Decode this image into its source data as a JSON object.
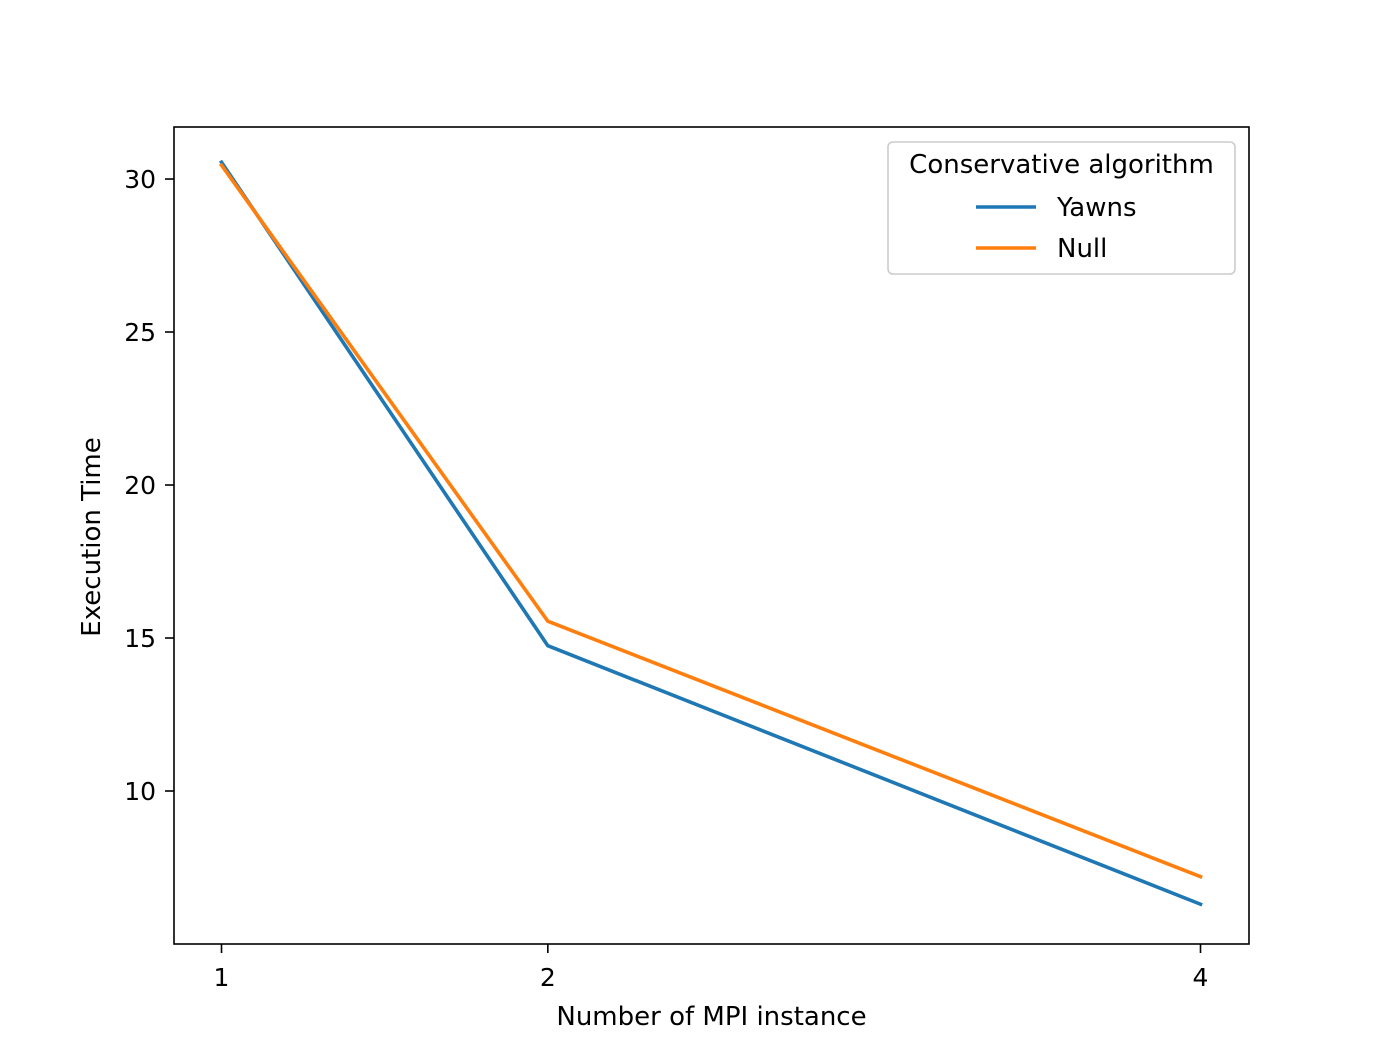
{
  "chart_data": {
    "type": "line",
    "title": "",
    "xlabel": "Number of MPI instance",
    "ylabel": "Execution Time",
    "x": [
      1,
      2,
      4
    ],
    "x_ticks": [
      "1",
      "2",
      "4"
    ],
    "y_ticks": [
      10,
      15,
      20,
      25,
      30
    ],
    "y_tick_labels": [
      "10",
      "15",
      "20",
      "25",
      "30"
    ],
    "ylim": [
      5.0,
      31.7
    ],
    "grid": false,
    "legend": {
      "title": "Conservative algorithm",
      "placement": "top-right"
    },
    "series": [
      {
        "name": "Yawns",
        "color": "#1f77b4",
        "values": [
          30.55,
          14.75,
          6.3
        ]
      },
      {
        "name": "Null",
        "color": "#ff7f0e",
        "values": [
          30.45,
          15.55,
          7.2
        ]
      }
    ]
  }
}
